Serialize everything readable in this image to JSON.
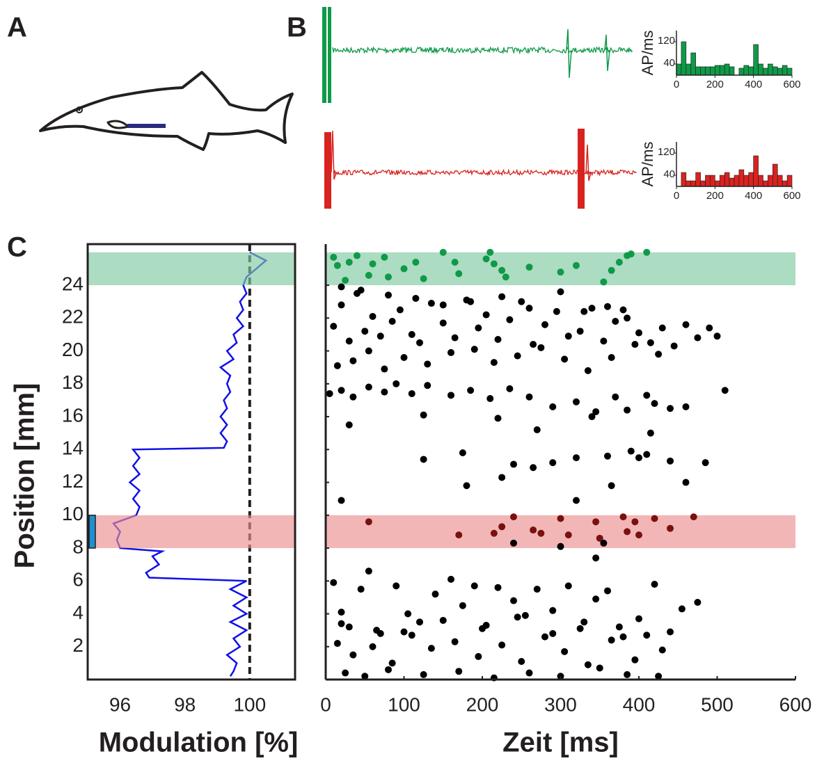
{
  "panel_labels": [
    "A",
    "B",
    "C"
  ],
  "chart_data": [
    {
      "type": "histogram",
      "color": "#0f9a48",
      "ylabel": "AP/ms",
      "bins": [
        0,
        25,
        50,
        75,
        100,
        125,
        150,
        175,
        200,
        225,
        250,
        275,
        300,
        325,
        350,
        375,
        400,
        425,
        450,
        475,
        500,
        525,
        550,
        575,
        600
      ],
      "values": [
        40,
        120,
        40,
        80,
        30,
        30,
        30,
        30,
        35,
        35,
        40,
        30,
        0,
        25,
        35,
        30,
        110,
        40,
        25,
        40,
        30,
        25,
        35,
        25
      ],
      "xlim": [
        0,
        600
      ],
      "xticks": [
        0,
        200,
        400,
        600
      ],
      "ylim": [
        0,
        160
      ],
      "yticks": [
        40,
        120
      ]
    },
    {
      "type": "histogram",
      "color": "#d8231f",
      "ylabel": "AP/ms",
      "bins": [
        0,
        25,
        50,
        75,
        100,
        125,
        150,
        175,
        200,
        225,
        250,
        275,
        300,
        325,
        350,
        375,
        400,
        425,
        450,
        475,
        500,
        525,
        550,
        575,
        600
      ],
      "values": [
        0,
        50,
        20,
        20,
        50,
        20,
        40,
        40,
        20,
        40,
        50,
        30,
        40,
        60,
        40,
        50,
        110,
        40,
        20,
        40,
        80,
        40,
        20,
        40
      ],
      "xlim": [
        0,
        600
      ],
      "xticks": [
        0,
        200,
        400,
        600
      ],
      "ylim": [
        0,
        160
      ],
      "yticks": [
        40,
        120
      ]
    },
    {
      "type": "line",
      "color": "#1010e8",
      "xlabel": "Modulation [%]",
      "ylabel": "Position [mm]",
      "x": [
        99.4,
        99.5,
        99.6,
        99.3,
        99.7,
        99.5,
        99.9,
        99.4,
        99.9,
        99.5,
        99.9,
        99.4,
        99.9,
        96.9,
        96.8,
        97.2,
        97.0,
        97.3,
        96.0,
        95.9,
        96.0,
        95.8,
        96.5,
        96.6,
        96.4,
        96.6,
        96.3,
        96.6,
        96.4,
        96.6,
        96.4,
        99.2,
        99.3,
        99.1,
        99.3,
        99.1,
        99.3,
        99.2,
        99.4,
        99.3,
        99.4,
        99.1,
        99.5,
        99.3,
        99.6,
        99.5,
        99.8,
        99.6,
        99.8,
        99.7,
        99.9,
        99.8,
        99.9,
        100.2,
        100.5,
        100.0
      ],
      "values": [
        0.2,
        0.5,
        1,
        1.5,
        2,
        2.5,
        3,
        3.5,
        4,
        4.5,
        5,
        5.5,
        6,
        6.2,
        6.5,
        7,
        7.5,
        7.8,
        8,
        8.5,
        9,
        9.5,
        10,
        10.5,
        11,
        11.5,
        12,
        12.5,
        13,
        13.5,
        14,
        14.1,
        14.5,
        15,
        15.5,
        16,
        16.5,
        17,
        17.5,
        18,
        18.5,
        19,
        19.5,
        20,
        20.5,
        21,
        21.5,
        22,
        22.5,
        23,
        23.5,
        24,
        24.5,
        25,
        25.5,
        26
      ],
      "xlim": [
        95,
        101.4
      ],
      "xticks": [
        96,
        98,
        100
      ],
      "ylim": [
        0,
        26.5
      ],
      "yticks": [
        2,
        4,
        6,
        8,
        10,
        12,
        14,
        16,
        18,
        20,
        22,
        24
      ],
      "reference_x": 100,
      "bands": [
        {
          "range": [
            24,
            26
          ],
          "color": "#7fc99f"
        },
        {
          "range": [
            8,
            10
          ],
          "color": "#eb8f8f"
        }
      ],
      "marker": {
        "range": [
          8,
          10
        ],
        "color": "#1e90d0"
      }
    },
    {
      "type": "scatter",
      "xlabel": "Zeit [ms]",
      "xlim": [
        0,
        600
      ],
      "xticks": [
        0,
        100,
        200,
        300,
        400,
        500,
        600
      ],
      "ylim": [
        0,
        26.5
      ],
      "yticks": [
        2,
        4,
        6,
        8,
        10,
        12,
        14,
        16,
        18,
        20,
        22,
        24
      ],
      "bands": [
        {
          "range": [
            24,
            26
          ],
          "color": "#7fc99f"
        },
        {
          "range": [
            8,
            10
          ],
          "color": "#eb8f8f"
        }
      ],
      "groups": [
        {
          "color": "#0f9a48",
          "x": [
            10,
            15,
            25,
            30,
            40,
            55,
            60,
            75,
            80,
            100,
            115,
            125,
            150,
            165,
            170,
            205,
            210,
            215,
            225,
            230,
            260,
            300,
            320,
            355,
            365,
            375,
            385,
            390,
            410
          ],
          "values": [
            25.7,
            25.2,
            24.3,
            25.4,
            25.8,
            24.6,
            25.3,
            25.7,
            24.5,
            25.0,
            25.4,
            24.4,
            26.0,
            25.4,
            24.7,
            25.6,
            26.0,
            25.3,
            24.9,
            24.5,
            25.1,
            24.8,
            25.2,
            24.2,
            24.9,
            25.4,
            25.8,
            25.9,
            26.0
          ]
        },
        {
          "color": "#7a1010",
          "x": [
            55,
            170,
            215,
            225,
            240,
            265,
            275,
            300,
            310,
            345,
            350,
            380,
            385,
            395,
            400,
            420,
            440,
            470
          ],
          "values": [
            9.6,
            8.8,
            8.9,
            9.3,
            9.9,
            9.1,
            8.9,
            9.8,
            8.8,
            9.6,
            8.6,
            9.9,
            9.0,
            9.6,
            8.8,
            9.8,
            9.2,
            9.9
          ]
        },
        {
          "color": "#000000",
          "x": [
            10,
            20,
            30,
            40,
            50,
            60,
            70,
            85,
            95,
            110,
            120,
            135,
            150,
            165,
            180,
            195,
            205,
            220,
            235,
            250,
            265,
            280,
            295,
            310,
            325,
            340,
            355,
            370,
            385,
            400,
            415,
            430,
            445,
            460,
            475,
            490,
            500,
            15,
            35,
            55,
            75,
            100,
            130,
            160,
            190,
            215,
            245,
            275,
            305,
            335,
            365,
            395,
            425,
            20,
            45,
            80,
            115,
            150,
            185,
            225,
            260,
            300,
            330,
            360,
            380,
            5,
            20,
            35,
            55,
            75,
            90,
            110,
            130,
            160,
            185,
            210,
            235,
            260,
            290,
            320,
            345,
            370,
            385,
            410,
            420,
            440,
            460,
            510,
            30,
            125,
            220,
            270,
            340,
            415,
            20,
            125,
            175,
            180,
            225,
            240,
            265,
            290,
            320,
            360,
            365,
            390,
            400,
            410,
            440,
            460,
            485,
            320,
            240,
            300,
            345,
            355,
            10,
            20,
            30,
            45,
            55,
            70,
            90,
            105,
            120,
            140,
            160,
            175,
            190,
            205,
            220,
            240,
            255,
            270,
            290,
            310,
            325,
            345,
            360,
            380,
            400,
            420,
            440,
            455,
            475,
            15,
            35,
            60,
            85,
            110,
            135,
            165,
            195,
            225,
            250,
            280,
            305,
            335,
            365,
            395,
            430,
            25,
            50,
            80,
            125,
            170,
            215,
            260,
            300,
            350,
            385,
            425,
            20,
            65,
            100,
            150,
            200,
            245,
            290,
            330,
            375,
            410
          ],
          "values": [
            21.5,
            22.8,
            20.6,
            23.5,
            21.2,
            22.1,
            20.9,
            21.8,
            22.5,
            21.0,
            20.5,
            22.9,
            21.7,
            20.8,
            23.1,
            21.4,
            22.2,
            20.7,
            21.9,
            23.0,
            20.4,
            21.6,
            22.4,
            20.9,
            21.2,
            22.6,
            20.6,
            21.8,
            22.0,
            21.1,
            20.5,
            21.4,
            20.3,
            21.6,
            20.8,
            21.4,
            20.9,
            19.1,
            19.4,
            20.0,
            18.9,
            19.6,
            19.2,
            19.9,
            20.1,
            19.3,
            19.7,
            20.2,
            19.5,
            18.8,
            19.6,
            20.4,
            19.8,
            23.9,
            23.7,
            23.4,
            23.2,
            22.8,
            23.0,
            23.3,
            22.6,
            23.6,
            22.4,
            22.7,
            22.5,
            17.4,
            17.6,
            17.2,
            17.8,
            17.5,
            18.0,
            17.4,
            17.9,
            17.3,
            17.6,
            17.1,
            17.7,
            17.2,
            16.6,
            16.9,
            16.3,
            17.2,
            16.4,
            17.3,
            16.8,
            16.5,
            16.6,
            17.6,
            15.5,
            16.1,
            15.9,
            15.2,
            16.0,
            15.0,
            10.9,
            13.4,
            13.8,
            11.8,
            12.3,
            13.1,
            12.9,
            13.2,
            13.5,
            13.6,
            11.8,
            13.9,
            13.5,
            13.7,
            13.3,
            12.0,
            13.2,
            10.9,
            8.3,
            8.1,
            7.4,
            8.3,
            5.9,
            4.1,
            3.2,
            5.5,
            6.6,
            2.8,
            5.7,
            4.0,
            3.5,
            5.2,
            6.1,
            4.5,
            5.7,
            3.3,
            5.6,
            4.8,
            3.9,
            5.5,
            4.2,
            5.7,
            3.1,
            4.9,
            5.4,
            2.6,
            3.7,
            5.8,
            2.9,
            4.3,
            4.7,
            2.2,
            1.5,
            2.0,
            1.0,
            2.7,
            1.9,
            2.3,
            1.4,
            2.1,
            1.1,
            2.6,
            1.7,
            0.9,
            2.4,
            1.2,
            1.8,
            0.4,
            0.2,
            0.6,
            0.3,
            0.5,
            0.1,
            0.4,
            0.2,
            0.7,
            0.3,
            0.2,
            3.4,
            3.0,
            2.9,
            3.6,
            3.1,
            3.8,
            2.8,
            3.5,
            3.2,
            2.7
          ]
        }
      ]
    }
  ]
}
